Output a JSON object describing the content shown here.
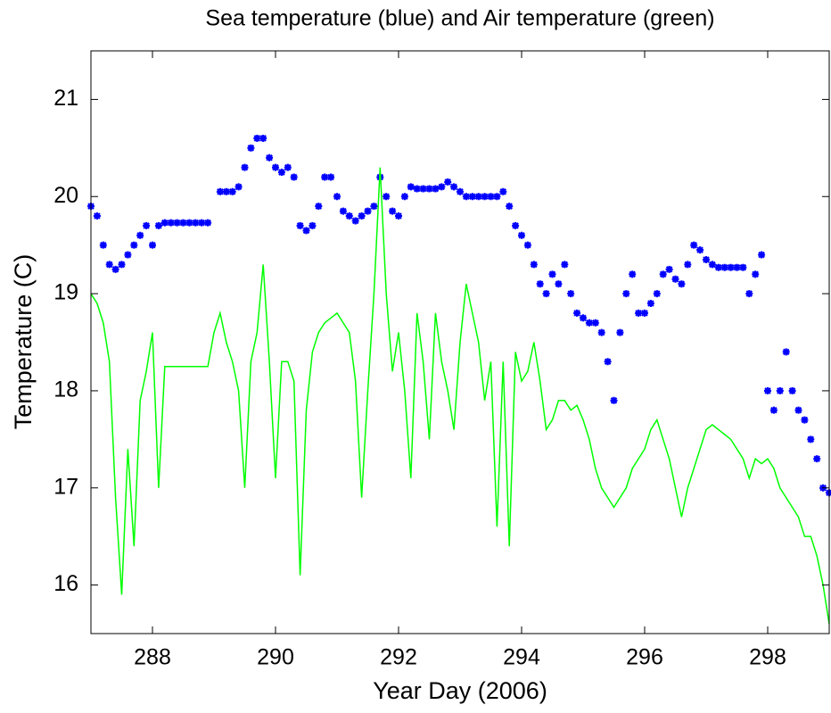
{
  "chart_data": {
    "type": "line_scatter",
    "title": "Sea temperature (blue) and Air temperature (green)",
    "x_label": "Year Day (2006)",
    "y_label": "Temperature (C)",
    "x": [
      287,
      287.1,
      287.2,
      287.3,
      287.4,
      287.5,
      287.6,
      287.7,
      287.8,
      287.9,
      288,
      288.1,
      288.2,
      288.3,
      288.4,
      288.5,
      288.6,
      288.7,
      288.8,
      288.9,
      289,
      289.1,
      289.2,
      289.3,
      289.4,
      289.5,
      289.6,
      289.7,
      289.8,
      289.9,
      290,
      290.1,
      290.2,
      290.3,
      290.4,
      290.5,
      290.6,
      290.7,
      290.8,
      290.9,
      291,
      291.1,
      291.2,
      291.3,
      291.4,
      291.5,
      291.6,
      291.7,
      291.8,
      291.9,
      292,
      292.1,
      292.2,
      292.3,
      292.4,
      292.5,
      292.6,
      292.7,
      292.8,
      292.9,
      293,
      293.1,
      293.2,
      293.3,
      293.4,
      293.5,
      293.6,
      293.7,
      293.8,
      293.9,
      294,
      294.1,
      294.2,
      294.3,
      294.4,
      294.5,
      294.6,
      294.7,
      294.8,
      294.9,
      295,
      295.1,
      295.2,
      295.3,
      295.4,
      295.5,
      295.6,
      295.7,
      295.8,
      295.9,
      296,
      296.1,
      296.2,
      296.3,
      296.4,
      296.5,
      296.6,
      296.7,
      296.8,
      296.9,
      297,
      297.1,
      297.2,
      297.3,
      297.4,
      297.5,
      297.6,
      297.7,
      297.8,
      297.9,
      298,
      298.1,
      298.2,
      298.3,
      298.4,
      298.5,
      298.6,
      298.7,
      298.8,
      298.9,
      299
    ],
    "series": [
      {
        "color": "#0000ff",
        "style": "markers",
        "values": [
          19.9,
          19.8,
          19.5,
          19.3,
          19.25,
          19.3,
          19.4,
          19.5,
          19.6,
          19.7,
          19.5,
          19.7,
          19.73,
          19.73,
          19.73,
          19.73,
          19.73,
          19.73,
          19.73,
          19.73,
          null,
          20.05,
          20.05,
          20.05,
          20.1,
          20.3,
          20.5,
          20.6,
          20.6,
          20.4,
          20.3,
          20.25,
          20.3,
          20.2,
          19.7,
          19.65,
          19.7,
          19.9,
          20.2,
          20.2,
          20.0,
          19.85,
          19.8,
          19.75,
          19.8,
          19.85,
          19.9,
          20.2,
          20.0,
          19.85,
          19.8,
          20.0,
          20.1,
          20.08,
          20.08,
          20.08,
          20.08,
          20.1,
          20.15,
          20.1,
          20.05,
          20.0,
          20.0,
          20.0,
          20.0,
          20.0,
          20.0,
          20.05,
          19.9,
          19.7,
          19.6,
          19.5,
          19.3,
          19.1,
          19.0,
          19.2,
          19.1,
          19.3,
          19.0,
          18.8,
          18.75,
          18.7,
          18.7,
          18.6,
          18.3,
          17.9,
          18.6,
          19.0,
          19.2,
          18.8,
          18.8,
          18.9,
          19.0,
          19.2,
          19.25,
          19.15,
          19.1,
          19.3,
          19.5,
          19.45,
          19.35,
          19.3,
          19.27,
          19.27,
          19.27,
          19.27,
          19.27,
          19.0,
          19.2,
          19.4,
          18.0,
          17.8,
          18.0,
          18.4,
          18.0,
          17.8,
          17.7,
          17.5,
          17.3,
          17.0,
          16.95
        ]
      },
      {
        "color": "#00ff00",
        "style": "line",
        "values": [
          19.0,
          18.9,
          18.7,
          18.3,
          16.9,
          15.9,
          17.4,
          16.4,
          17.9,
          18.2,
          18.6,
          17.0,
          18.25,
          18.25,
          18.25,
          18.25,
          18.25,
          18.25,
          18.25,
          18.25,
          18.6,
          18.8,
          18.5,
          18.3,
          18.0,
          17.0,
          18.3,
          18.6,
          19.3,
          18.3,
          17.1,
          18.3,
          18.3,
          18.1,
          16.1,
          17.8,
          18.4,
          18.6,
          18.7,
          18.75,
          18.8,
          18.7,
          18.6,
          18.1,
          16.9,
          18.0,
          19.0,
          20.3,
          19.0,
          18.2,
          18.6,
          18.0,
          17.1,
          18.8,
          18.3,
          17.5,
          18.8,
          18.3,
          18.0,
          17.6,
          18.5,
          19.1,
          18.8,
          18.5,
          17.9,
          18.3,
          16.6,
          18.3,
          16.4,
          18.4,
          18.1,
          18.2,
          18.5,
          18.1,
          17.6,
          17.7,
          17.9,
          17.9,
          17.8,
          17.85,
          17.7,
          17.5,
          17.2,
          17.0,
          16.9,
          16.8,
          16.9,
          17.0,
          17.2,
          17.3,
          17.4,
          17.6,
          17.7,
          17.5,
          17.3,
          17.0,
          16.7,
          17.0,
          17.2,
          17.4,
          17.6,
          17.65,
          17.6,
          17.55,
          17.5,
          17.4,
          17.3,
          17.1,
          17.3,
          17.25,
          17.3,
          17.2,
          17.0,
          16.9,
          16.8,
          16.7,
          16.5,
          16.5,
          16.3,
          16.0,
          15.6
        ]
      }
    ],
    "xlim": [
      287,
      299
    ],
    "ylim": [
      15.5,
      21.5
    ],
    "xticks": [
      288,
      290,
      292,
      294,
      296,
      298
    ],
    "yticks": [
      16,
      17,
      18,
      19,
      20,
      21
    ]
  }
}
